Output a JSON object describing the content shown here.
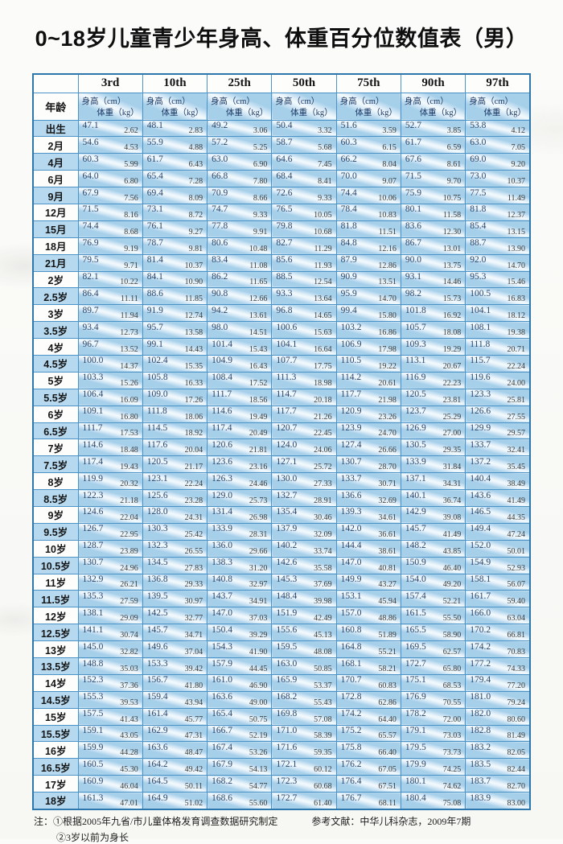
{
  "title": "0~18岁儿童青少年身高、体重百分位数值表（男）",
  "table": {
    "age_header": "年龄",
    "height_label": "身高（cm）",
    "weight_label": "体重（kg）",
    "percentiles": [
      "3rd",
      "10th",
      "25th",
      "50th",
      "75th",
      "90th",
      "97th"
    ],
    "rows": [
      {
        "age": "出生",
        "values": [
          "47.1",
          "2.62",
          "48.1",
          "2.83",
          "49.2",
          "3.06",
          "50.4",
          "3.32",
          "51.6",
          "3.59",
          "52.7",
          "3.85",
          "53.8",
          "4.12"
        ]
      },
      {
        "age": "2月",
        "values": [
          "54.6",
          "4.53",
          "55.9",
          "4.88",
          "57.2",
          "5.25",
          "58.7",
          "5.68",
          "60.3",
          "6.15",
          "61.7",
          "6.59",
          "63.0",
          "7.05"
        ]
      },
      {
        "age": "4月",
        "values": [
          "60.3",
          "5.99",
          "61.7",
          "6.43",
          "63.0",
          "6.90",
          "64.6",
          "7.45",
          "66.2",
          "8.04",
          "67.6",
          "8.61",
          "69.0",
          "9.20"
        ]
      },
      {
        "age": "6月",
        "values": [
          "64.0",
          "6.80",
          "65.4",
          "7.28",
          "66.8",
          "7.80",
          "68.4",
          "8.41",
          "70.0",
          "9.07",
          "71.5",
          "9.70",
          "73.0",
          "10.37"
        ]
      },
      {
        "age": "9月",
        "values": [
          "67.9",
          "7.56",
          "69.4",
          "8.09",
          "70.9",
          "8.66",
          "72.6",
          "9.33",
          "74.4",
          "10.06",
          "75.9",
          "10.75",
          "77.5",
          "11.49"
        ]
      },
      {
        "age": "12月",
        "values": [
          "71.5",
          "8.16",
          "73.1",
          "8.72",
          "74.7",
          "9.33",
          "76.5",
          "10.05",
          "78.4",
          "10.83",
          "80.1",
          "11.58",
          "81.8",
          "12.37"
        ]
      },
      {
        "age": "15月",
        "values": [
          "74.4",
          "8.68",
          "76.1",
          "9.27",
          "77.8",
          "9.91",
          "79.8",
          "10.68",
          "81.8",
          "11.51",
          "83.6",
          "12.30",
          "85.4",
          "13.15"
        ]
      },
      {
        "age": "18月",
        "values": [
          "76.9",
          "9.19",
          "78.7",
          "9.81",
          "80.6",
          "10.48",
          "82.7",
          "11.29",
          "84.8",
          "12.16",
          "86.7",
          "13.01",
          "88.7",
          "13.90"
        ]
      },
      {
        "age": "21月",
        "values": [
          "79.5",
          "9.71",
          "81.4",
          "10.37",
          "83.4",
          "11.08",
          "85.6",
          "11.93",
          "87.9",
          "12.86",
          "90.0",
          "13.75",
          "92.0",
          "14.70"
        ]
      },
      {
        "age": "2岁",
        "values": [
          "82.1",
          "10.22",
          "84.1",
          "10.90",
          "86.2",
          "11.65",
          "88.5",
          "12.54",
          "90.9",
          "13.51",
          "93.1",
          "14.46",
          "95.3",
          "15.46"
        ]
      },
      {
        "age": "2.5岁",
        "values": [
          "86.4",
          "11.11",
          "88.6",
          "11.85",
          "90.8",
          "12.66",
          "93.3",
          "13.64",
          "95.9",
          "14.70",
          "98.2",
          "15.73",
          "100.5",
          "16.83"
        ]
      },
      {
        "age": "3岁",
        "values": [
          "89.7",
          "11.94",
          "91.9",
          "12.74",
          "94.2",
          "13.61",
          "96.8",
          "14.65",
          "99.4",
          "15.80",
          "101.8",
          "16.92",
          "104.1",
          "18.12"
        ]
      },
      {
        "age": "3.5岁",
        "values": [
          "93.4",
          "12.73",
          "95.7",
          "13.58",
          "98.0",
          "14.51",
          "100.6",
          "15.63",
          "103.2",
          "16.86",
          "105.7",
          "18.08",
          "108.1",
          "19.38"
        ]
      },
      {
        "age": "4岁",
        "values": [
          "96.7",
          "13.52",
          "99.1",
          "14.43",
          "101.4",
          "15.43",
          "104.1",
          "16.64",
          "106.9",
          "17.98",
          "109.3",
          "19.29",
          "111.8",
          "20.71"
        ]
      },
      {
        "age": "4.5岁",
        "values": [
          "100.0",
          "14.37",
          "102.4",
          "15.35",
          "104.9",
          "16.43",
          "107.7",
          "17.75",
          "110.5",
          "19.22",
          "113.1",
          "20.67",
          "115.7",
          "22.24"
        ]
      },
      {
        "age": "5岁",
        "values": [
          "103.3",
          "15.26",
          "105.8",
          "16.33",
          "108.4",
          "17.52",
          "111.3",
          "18.98",
          "114.2",
          "20.61",
          "116.9",
          "22.23",
          "119.6",
          "24.00"
        ]
      },
      {
        "age": "5.5岁",
        "values": [
          "106.4",
          "16.09",
          "109.0",
          "17.26",
          "111.7",
          "18.56",
          "114.7",
          "20.18",
          "117.7",
          "21.98",
          "120.5",
          "23.81",
          "123.3",
          "25.81"
        ]
      },
      {
        "age": "6岁",
        "values": [
          "109.1",
          "16.80",
          "111.8",
          "18.06",
          "114.6",
          "19.49",
          "117.7",
          "21.26",
          "120.9",
          "23.26",
          "123.7",
          "25.29",
          "126.6",
          "27.55"
        ]
      },
      {
        "age": "6.5岁",
        "values": [
          "111.7",
          "17.53",
          "114.5",
          "18.92",
          "117.4",
          "20.49",
          "120.7",
          "22.45",
          "123.9",
          "24.70",
          "126.9",
          "27.00",
          "129.9",
          "29.57"
        ]
      },
      {
        "age": "7岁",
        "values": [
          "114.6",
          "18.48",
          "117.6",
          "20.04",
          "120.6",
          "21.81",
          "124.0",
          "24.06",
          "127.4",
          "26.66",
          "130.5",
          "29.35",
          "133.7",
          "32.41"
        ]
      },
      {
        "age": "7.5岁",
        "values": [
          "117.4",
          "19.43",
          "120.5",
          "21.17",
          "123.6",
          "23.16",
          "127.1",
          "25.72",
          "130.7",
          "28.70",
          "133.9",
          "31.84",
          "137.2",
          "35.45"
        ]
      },
      {
        "age": "8岁",
        "values": [
          "119.9",
          "20.32",
          "123.1",
          "22.24",
          "126.3",
          "24.46",
          "130.0",
          "27.33",
          "133.7",
          "30.71",
          "137.1",
          "34.31",
          "140.4",
          "38.49"
        ]
      },
      {
        "age": "8.5岁",
        "values": [
          "122.3",
          "21.18",
          "125.6",
          "23.28",
          "129.0",
          "25.73",
          "132.7",
          "28.91",
          "136.6",
          "32.69",
          "140.1",
          "36.74",
          "143.6",
          "41.49"
        ]
      },
      {
        "age": "9岁",
        "values": [
          "124.6",
          "22.04",
          "128.0",
          "24.31",
          "131.4",
          "26.98",
          "135.4",
          "30.46",
          "139.3",
          "34.61",
          "142.9",
          "39.08",
          "146.5",
          "44.35"
        ]
      },
      {
        "age": "9.5岁",
        "values": [
          "126.7",
          "22.95",
          "130.3",
          "25.42",
          "133.9",
          "28.31",
          "137.9",
          "32.09",
          "142.0",
          "36.61",
          "145.7",
          "41.49",
          "149.4",
          "47.24"
        ]
      },
      {
        "age": "10岁",
        "values": [
          "128.7",
          "23.89",
          "132.3",
          "26.55",
          "136.0",
          "29.66",
          "140.2",
          "33.74",
          "144.4",
          "38.61",
          "148.2",
          "43.85",
          "152.0",
          "50.01"
        ]
      },
      {
        "age": "10.5岁",
        "values": [
          "130.7",
          "24.96",
          "134.5",
          "27.83",
          "138.3",
          "31.20",
          "142.6",
          "35.58",
          "147.0",
          "40.81",
          "150.9",
          "46.40",
          "154.9",
          "52.93"
        ]
      },
      {
        "age": "11岁",
        "values": [
          "132.9",
          "26.21",
          "136.8",
          "29.33",
          "140.8",
          "32.97",
          "145.3",
          "37.69",
          "149.9",
          "43.27",
          "154.0",
          "49.20",
          "158.1",
          "56.07"
        ]
      },
      {
        "age": "11.5岁",
        "values": [
          "135.3",
          "27.59",
          "139.5",
          "30.97",
          "143.7",
          "34.91",
          "148.4",
          "39.98",
          "153.1",
          "45.94",
          "157.4",
          "52.21",
          "161.7",
          "59.40"
        ]
      },
      {
        "age": "12岁",
        "values": [
          "138.1",
          "29.09",
          "142.5",
          "32.77",
          "147.0",
          "37.03",
          "151.9",
          "42.49",
          "157.0",
          "48.86",
          "161.5",
          "55.50",
          "166.0",
          "63.04"
        ]
      },
      {
        "age": "12.5岁",
        "values": [
          "141.1",
          "30.74",
          "145.7",
          "34.71",
          "150.4",
          "39.29",
          "155.6",
          "45.13",
          "160.8",
          "51.89",
          "165.5",
          "58.90",
          "170.2",
          "66.81"
        ]
      },
      {
        "age": "13岁",
        "values": [
          "145.0",
          "32.82",
          "149.6",
          "37.04",
          "154.3",
          "41.90",
          "159.5",
          "48.08",
          "164.8",
          "55.21",
          "169.5",
          "62.57",
          "174.2",
          "70.83"
        ]
      },
      {
        "age": "13.5岁",
        "values": [
          "148.8",
          "35.03",
          "153.3",
          "39.42",
          "157.9",
          "44.45",
          "163.0",
          "50.85",
          "168.1",
          "58.21",
          "172.7",
          "65.80",
          "177.2",
          "74.33"
        ]
      },
      {
        "age": "14岁",
        "values": [
          "152.3",
          "37.36",
          "156.7",
          "41.80",
          "161.0",
          "46.90",
          "165.9",
          "53.37",
          "170.7",
          "60.83",
          "175.1",
          "68.53",
          "179.4",
          "77.20"
        ]
      },
      {
        "age": "14.5岁",
        "values": [
          "155.3",
          "39.53",
          "159.4",
          "43.94",
          "163.6",
          "49.00",
          "168.2",
          "55.43",
          "172.8",
          "62.86",
          "176.9",
          "70.55",
          "181.0",
          "79.24"
        ]
      },
      {
        "age": "15岁",
        "values": [
          "157.5",
          "41.43",
          "161.4",
          "45.77",
          "165.4",
          "50.75",
          "169.8",
          "57.08",
          "174.2",
          "64.40",
          "178.2",
          "72.00",
          "182.0",
          "80.60"
        ]
      },
      {
        "age": "15.5岁",
        "values": [
          "159.1",
          "43.05",
          "162.9",
          "47.31",
          "166.7",
          "52.19",
          "171.0",
          "58.39",
          "175.2",
          "65.57",
          "179.1",
          "73.03",
          "182.8",
          "81.49"
        ]
      },
      {
        "age": "16岁",
        "values": [
          "159.9",
          "44.28",
          "163.6",
          "48.47",
          "167.4",
          "53.26",
          "171.6",
          "59.35",
          "175.8",
          "66.40",
          "179.5",
          "73.73",
          "183.2",
          "82.05"
        ]
      },
      {
        "age": "16.5岁",
        "values": [
          "160.5",
          "45.30",
          "164.2",
          "49.42",
          "167.9",
          "54.13",
          "172.1",
          "60.12",
          "176.2",
          "67.05",
          "179.9",
          "74.25",
          "183.5",
          "82.44"
        ]
      },
      {
        "age": "17岁",
        "values": [
          "160.9",
          "46.04",
          "164.5",
          "50.11",
          "168.2",
          "54.77",
          "172.3",
          "60.68",
          "176.4",
          "67.51",
          "180.1",
          "74.62",
          "183.7",
          "82.70"
        ]
      },
      {
        "age": "18岁",
        "values": [
          "161.3",
          "47.01",
          "164.9",
          "51.02",
          "168.6",
          "55.60",
          "172.7",
          "61.40",
          "176.7",
          "68.11",
          "180.4",
          "75.08",
          "183.9",
          "83.00"
        ]
      }
    ]
  },
  "footer": {
    "note1": "注：①根据2005年九省/市儿童体格发育调查数据研究制定",
    "note2": "②3岁以前为身长",
    "reference": "参考文献：中华儿科杂志，2009年7期"
  },
  "colors": {
    "cell_blue": "#a6cfea",
    "stripe_white": "#f3fafd",
    "grid_border": "#4b93c6",
    "outer_border": "#2e77ad",
    "age_row_blue": "#b6d9f0",
    "height_text": "#27456a",
    "weight_text": "#3b3b38"
  }
}
